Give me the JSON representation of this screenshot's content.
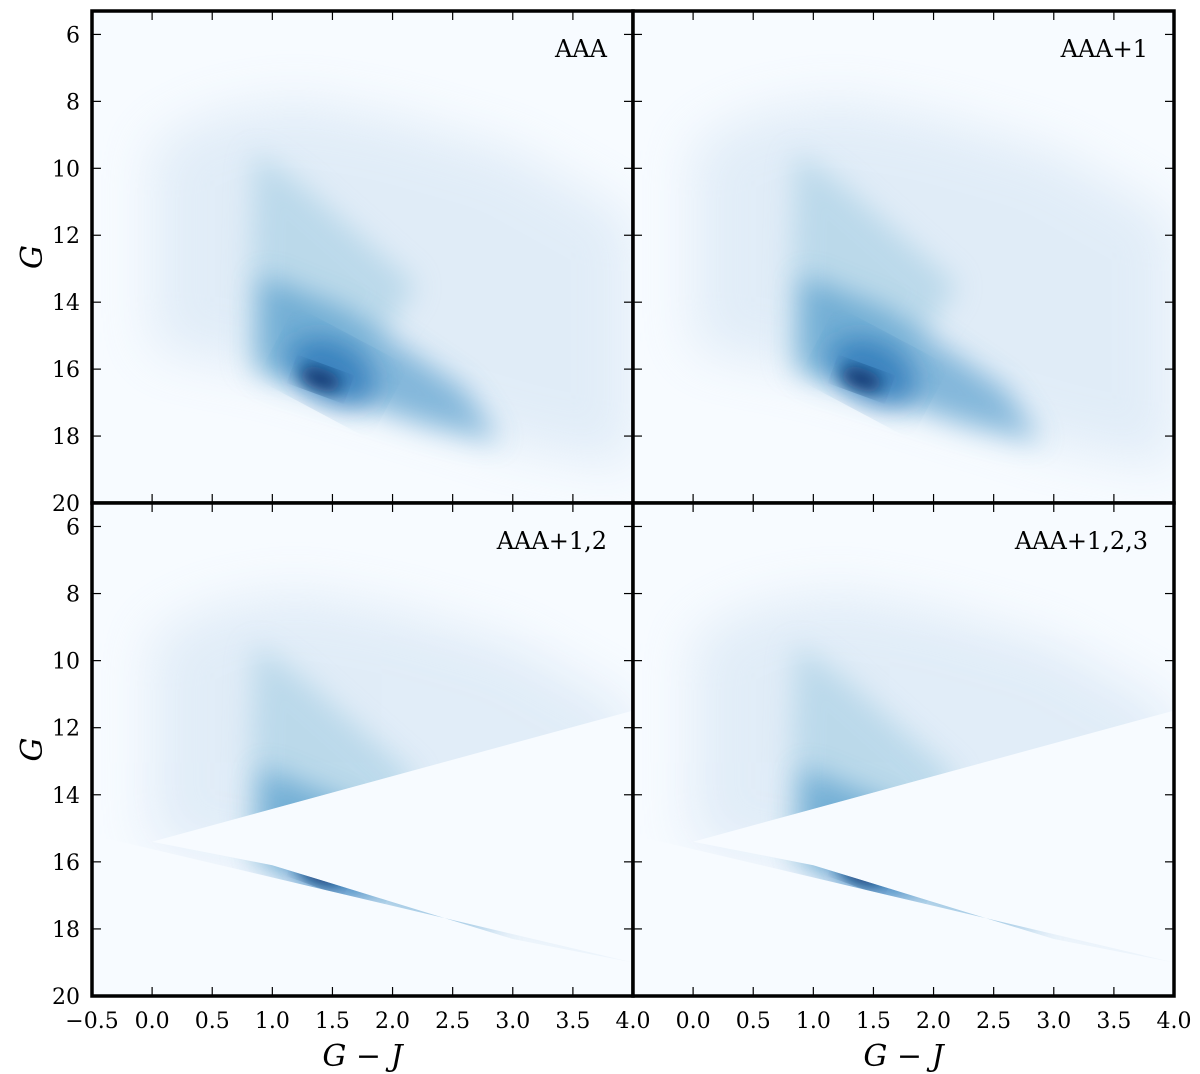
{
  "chart_data": {
    "type": "heatmap",
    "layout": "2x2 grid, shared axes",
    "xlabel": "G − J",
    "ylabel": "G",
    "xlim": [
      -0.5,
      4.0
    ],
    "ylim": [
      20,
      5.3
    ],
    "y_inverted": true,
    "xticks": [
      -0.5,
      0.0,
      0.5,
      1.0,
      1.5,
      2.0,
      2.5,
      3.0,
      3.5,
      4.0
    ],
    "xtick_labels": [
      "−0.5",
      "0.0",
      "0.5",
      "1.0",
      "1.5",
      "2.0",
      "2.5",
      "3.0",
      "3.5",
      "4.0"
    ],
    "yticks": [
      6,
      8,
      10,
      12,
      14,
      16,
      18,
      20
    ],
    "ytick_labels": [
      "6",
      "8",
      "10",
      "12",
      "14",
      "16",
      "18",
      "20"
    ],
    "colormap": "Blues",
    "colormap_light": "#f7fbff",
    "colormap_dark": "#08306b",
    "density_features": [
      {
        "feature": "main sequence ridge",
        "x_range": [
          0.9,
          2.9
        ],
        "peak": {
          "x": 1.4,
          "y": 16.3
        }
      },
      {
        "feature": "giant branch plume",
        "x_range": [
          0.8,
          1.3
        ],
        "y_range": [
          9.5,
          16.0
        ]
      },
      {
        "feature": "lower envelope",
        "points": [
          [
            0.0,
            15.4
          ],
          [
            1.0,
            16.1
          ],
          [
            2.0,
            17.2
          ],
          [
            3.0,
            18.3
          ],
          [
            4.0,
            19.0
          ]
        ]
      }
    ],
    "panels": [
      {
        "label": "AAA",
        "lower_edge": "soft"
      },
      {
        "label": "AAA+1",
        "lower_edge": "soft"
      },
      {
        "label": "AAA+1,2",
        "lower_edge": "sharp"
      },
      {
        "label": "AAA+1,2,3",
        "lower_edge": "sharp"
      }
    ]
  }
}
